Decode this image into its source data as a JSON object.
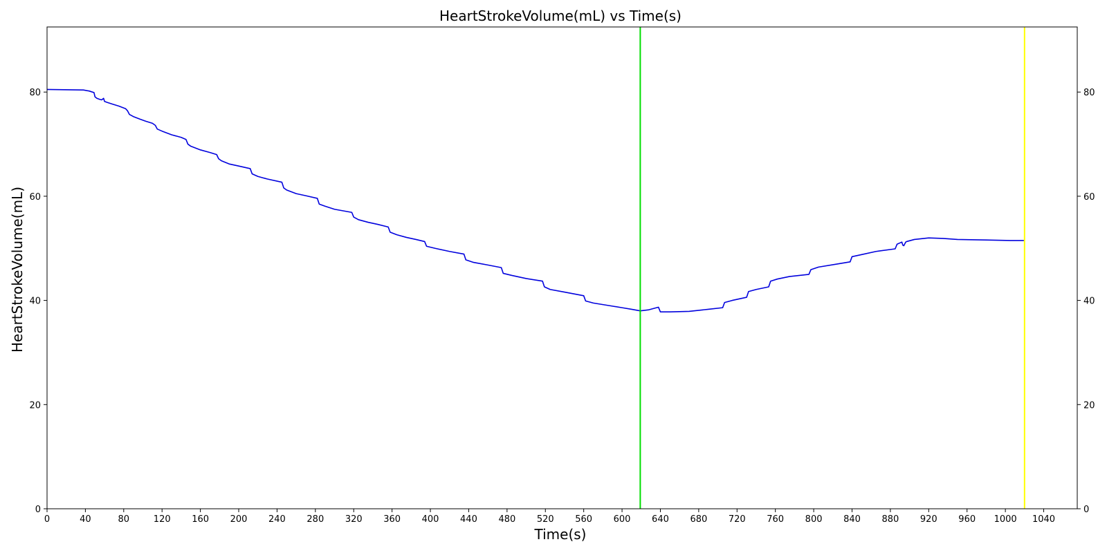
{
  "chart_data": {
    "type": "line",
    "title": "HeartStrokeVolume(mL) vs Time(s)",
    "xlabel": "Time(s)",
    "ylabel": "HeartStrokeVolume(mL)",
    "xlim": [
      0,
      1075
    ],
    "ylim": [
      0,
      92.5
    ],
    "xticks": [
      0,
      40,
      80,
      120,
      160,
      200,
      240,
      280,
      320,
      360,
      400,
      440,
      480,
      520,
      560,
      600,
      640,
      680,
      720,
      760,
      800,
      840,
      880,
      920,
      960,
      1000,
      1040
    ],
    "yticks": [
      0,
      20,
      40,
      60,
      80
    ],
    "right_axis_ticks": [
      0,
      20,
      40,
      60,
      80
    ],
    "grid": false,
    "colors": {
      "series": "#0000dd",
      "marker_1": "#00dd00",
      "marker_2": "#ffff00"
    },
    "vertical_lines": [
      {
        "x": 619,
        "color": "#00dd00"
      },
      {
        "x": 1020,
        "color": "#ffff00"
      }
    ],
    "series": [
      {
        "x": [
          0,
          38,
          44,
          49,
          50,
          52,
          55,
          57,
          59,
          60,
          63,
          68,
          75,
          82,
          84,
          86,
          90,
          97,
          103,
          110,
          113,
          115,
          120,
          130,
          140,
          145,
          147,
          150,
          160,
          170,
          177,
          179,
          182,
          190,
          200,
          212,
          214,
          220,
          230,
          245,
          247,
          250,
          260,
          270,
          282,
          284,
          290,
          300,
          318,
          320,
          325,
          335,
          345,
          356,
          358,
          365,
          375,
          385,
          394,
          396,
          405,
          420,
          435,
          437,
          445,
          460,
          474,
          476,
          485,
          500,
          517,
          519,
          525,
          540,
          560,
          562,
          570,
          580,
          590,
          600,
          610,
          619,
          628,
          638,
          640,
          650,
          670,
          690,
          705,
          707,
          715,
          730,
          732,
          740,
          753,
          755,
          762,
          775,
          795,
          797,
          805,
          825,
          838,
          840,
          850,
          865,
          885,
          887,
          892,
          893,
          894,
          896,
          897,
          899,
          905,
          920,
          935,
          950,
          980,
          1005,
          1020
        ],
        "values": [
          80.5,
          80.4,
          80.2,
          79.9,
          79.1,
          78.8,
          78.6,
          78.5,
          78.8,
          78.2,
          78.0,
          77.7,
          77.3,
          76.8,
          76.4,
          75.7,
          75.3,
          74.8,
          74.4,
          74.0,
          73.6,
          72.9,
          72.5,
          71.8,
          71.3,
          70.9,
          70.0,
          69.6,
          68.9,
          68.4,
          68.0,
          67.2,
          66.8,
          66.2,
          65.8,
          65.3,
          64.3,
          63.8,
          63.3,
          62.7,
          61.6,
          61.2,
          60.5,
          60.1,
          59.6,
          58.5,
          58.1,
          57.5,
          56.9,
          56.0,
          55.5,
          55.0,
          54.6,
          54.1,
          53.1,
          52.6,
          52.1,
          51.7,
          51.3,
          50.4,
          50.0,
          49.4,
          48.9,
          47.8,
          47.3,
          46.8,
          46.3,
          45.2,
          44.8,
          44.2,
          43.7,
          42.6,
          42.1,
          41.6,
          40.9,
          39.9,
          39.5,
          39.2,
          38.9,
          38.6,
          38.3,
          38.0,
          38.2,
          38.7,
          37.8,
          37.8,
          37.9,
          38.3,
          38.6,
          39.6,
          40.0,
          40.6,
          41.7,
          42.1,
          42.6,
          43.7,
          44.1,
          44.6,
          45.0,
          45.9,
          46.4,
          47.0,
          47.4,
          48.4,
          48.8,
          49.4,
          49.9,
          50.8,
          51.2,
          50.6,
          50.5,
          51.2,
          51.3,
          51.4,
          51.7,
          52.0,
          51.9,
          51.7,
          51.6,
          51.5,
          51.5
        ]
      }
    ]
  }
}
